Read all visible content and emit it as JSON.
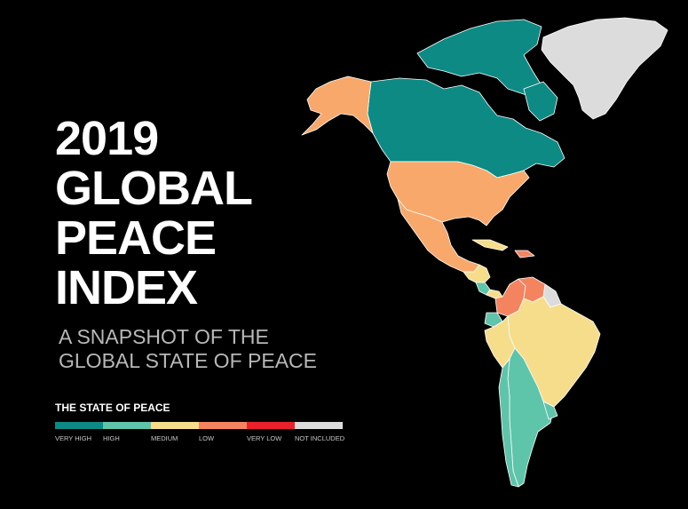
{
  "title_lines": [
    "2019",
    "GLOBAL",
    "PEACE",
    "INDEX"
  ],
  "subtitle_lines": [
    "A SNAPSHOT OF THE",
    "GLOBAL STATE OF PEACE"
  ],
  "legend": {
    "title": "THE STATE OF PEACE",
    "items": [
      {
        "label": "VERY HIGH",
        "color": "#0e8a84"
      },
      {
        "label": "HIGH",
        "color": "#5ec4aa"
      },
      {
        "label": "MEDIUM",
        "color": "#f6dd8c"
      },
      {
        "label": "LOW",
        "color": "#f4845f"
      },
      {
        "label": "VERY LOW",
        "color": "#e8212b"
      },
      {
        "label": "NOT INCLUDED",
        "color": "#dcdcdc"
      }
    ]
  },
  "map": {
    "colors": {
      "very_high": "#0e8a84",
      "high": "#5ec4aa",
      "medium": "#f6dd8c",
      "low_mid": "#f7a86a",
      "low": "#f4845f",
      "very_low": "#e8212b",
      "not_included": "#dcdcdc",
      "border": "#ffffff"
    }
  }
}
